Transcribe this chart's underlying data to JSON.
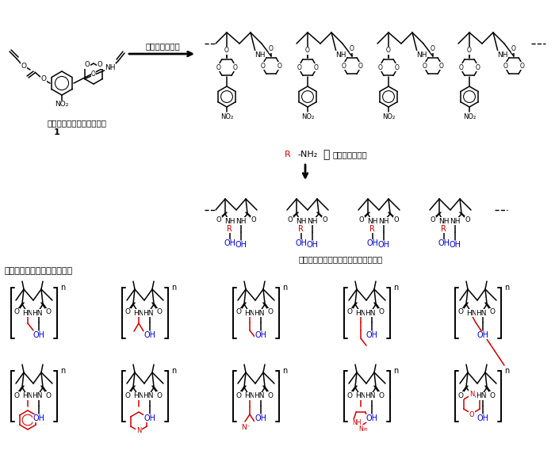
{
  "fig_width": 7.0,
  "fig_height": 5.78,
  "dpi": 100,
  "bg": "#ffffff",
  "black": "#000000",
  "red": "#cc0000",
  "blue": "#0000cc",
  "label_monomer": "設計したジビニルモノマー",
  "label_1": "1",
  "label_selective": "選択的環化重合",
  "label_spacer": "スペーサー変換",
  "label_rnh2": "R",
  "label_rnh2b": "-NH₂",
  "label_alt": "アクリルアミドからなる交互共重合体",
  "label_synth": "実際に合成した交互共重合体"
}
